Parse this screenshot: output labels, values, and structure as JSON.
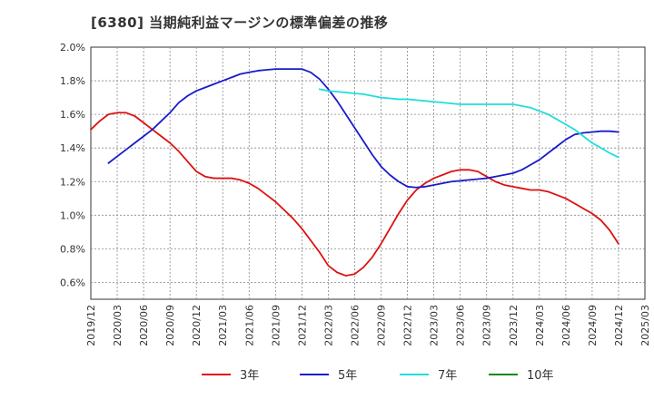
{
  "chart_data": {
    "type": "line",
    "title": "[6380]  当期純利益マージンの標準偏差の推移",
    "xlabel": "",
    "ylabel": "",
    "xlim": [
      "2019-12",
      "2025-03"
    ],
    "ylim": [
      0.5,
      2.0
    ],
    "y_ticks": [
      0.6,
      0.8,
      1.0,
      1.2,
      1.4,
      1.6,
      1.8,
      2.0
    ],
    "y_tick_labels": [
      "0.6%",
      "0.8%",
      "1.0%",
      "1.2%",
      "1.4%",
      "1.6%",
      "1.8%",
      "2.0%"
    ],
    "x_tick_labels": [
      "2019/12",
      "2020/03",
      "2020/06",
      "2020/09",
      "2020/12",
      "2021/03",
      "2021/06",
      "2021/09",
      "2021/12",
      "2022/03",
      "2022/06",
      "2022/09",
      "2022/12",
      "2023/03",
      "2023/06",
      "2023/09",
      "2023/12",
      "2024/03",
      "2024/06",
      "2024/09",
      "2024/12",
      "2025/03"
    ],
    "grid": true,
    "legend_position": "bottom",
    "colors": {
      "3y": "#dd1111",
      "5y": "#1a1acc",
      "7y": "#22dddd",
      "10y": "#118811"
    },
    "series": [
      {
        "name": "3年",
        "color": "#dd1111",
        "points": [
          [
            "2019-12",
            1.51
          ],
          [
            "2020-01",
            1.56
          ],
          [
            "2020-02",
            1.6
          ],
          [
            "2020-03",
            1.61
          ],
          [
            "2020-04",
            1.61
          ],
          [
            "2020-05",
            1.59
          ],
          [
            "2020-06",
            1.55
          ],
          [
            "2020-07",
            1.51
          ],
          [
            "2020-08",
            1.47
          ],
          [
            "2020-09",
            1.43
          ],
          [
            "2020-10",
            1.38
          ],
          [
            "2020-11",
            1.32
          ],
          [
            "2020-12",
            1.26
          ],
          [
            "2021-01",
            1.23
          ],
          [
            "2021-02",
            1.22
          ],
          [
            "2021-03",
            1.22
          ],
          [
            "2021-04",
            1.22
          ],
          [
            "2021-05",
            1.21
          ],
          [
            "2021-06",
            1.19
          ],
          [
            "2021-07",
            1.16
          ],
          [
            "2021-08",
            1.12
          ],
          [
            "2021-09",
            1.08
          ],
          [
            "2021-10",
            1.03
          ],
          [
            "2021-11",
            0.98
          ],
          [
            "2021-12",
            0.92
          ],
          [
            "2022-01",
            0.85
          ],
          [
            "2022-02",
            0.78
          ],
          [
            "2022-03",
            0.7
          ],
          [
            "2022-04",
            0.66
          ],
          [
            "2022-05",
            0.64
          ],
          [
            "2022-06",
            0.65
          ],
          [
            "2022-07",
            0.69
          ],
          [
            "2022-08",
            0.75
          ],
          [
            "2022-09",
            0.83
          ],
          [
            "2022-10",
            0.92
          ],
          [
            "2022-11",
            1.01
          ],
          [
            "2022-12",
            1.09
          ],
          [
            "2023-01",
            1.15
          ],
          [
            "2023-02",
            1.19
          ],
          [
            "2023-03",
            1.22
          ],
          [
            "2023-04",
            1.24
          ],
          [
            "2023-05",
            1.26
          ],
          [
            "2023-06",
            1.27
          ],
          [
            "2023-07",
            1.27
          ],
          [
            "2023-08",
            1.26
          ],
          [
            "2023-09",
            1.23
          ],
          [
            "2023-10",
            1.2
          ],
          [
            "2023-11",
            1.18
          ],
          [
            "2023-12",
            1.17
          ],
          [
            "2024-01",
            1.16
          ],
          [
            "2024-02",
            1.15
          ],
          [
            "2024-03",
            1.15
          ],
          [
            "2024-04",
            1.14
          ],
          [
            "2024-05",
            1.12
          ],
          [
            "2024-06",
            1.1
          ],
          [
            "2024-07",
            1.07
          ],
          [
            "2024-08",
            1.04
          ],
          [
            "2024-09",
            1.01
          ],
          [
            "2024-10",
            0.97
          ],
          [
            "2024-11",
            0.91
          ],
          [
            "2024-12",
            0.83
          ]
        ]
      },
      {
        "name": "5年",
        "color": "#1a1acc",
        "points": [
          [
            "2020-02",
            1.31
          ],
          [
            "2020-03",
            1.35
          ],
          [
            "2020-04",
            1.39
          ],
          [
            "2020-05",
            1.43
          ],
          [
            "2020-06",
            1.47
          ],
          [
            "2020-07",
            1.51
          ],
          [
            "2020-08",
            1.56
          ],
          [
            "2020-09",
            1.61
          ],
          [
            "2020-10",
            1.67
          ],
          [
            "2020-11",
            1.71
          ],
          [
            "2020-12",
            1.74
          ],
          [
            "2021-01",
            1.76
          ],
          [
            "2021-02",
            1.78
          ],
          [
            "2021-03",
            1.8
          ],
          [
            "2021-04",
            1.82
          ],
          [
            "2021-05",
            1.84
          ],
          [
            "2021-06",
            1.85
          ],
          [
            "2021-07",
            1.86
          ],
          [
            "2021-08",
            1.865
          ],
          [
            "2021-09",
            1.87
          ],
          [
            "2021-10",
            1.87
          ],
          [
            "2021-11",
            1.87
          ],
          [
            "2021-12",
            1.87
          ],
          [
            "2022-01",
            1.85
          ],
          [
            "2022-02",
            1.81
          ],
          [
            "2022-03",
            1.75
          ],
          [
            "2022-04",
            1.68
          ],
          [
            "2022-05",
            1.6
          ],
          [
            "2022-06",
            1.52
          ],
          [
            "2022-07",
            1.44
          ],
          [
            "2022-08",
            1.36
          ],
          [
            "2022-09",
            1.29
          ],
          [
            "2022-10",
            1.24
          ],
          [
            "2022-11",
            1.2
          ],
          [
            "2022-12",
            1.17
          ],
          [
            "2023-01",
            1.165
          ],
          [
            "2023-02",
            1.17
          ],
          [
            "2023-03",
            1.18
          ],
          [
            "2023-04",
            1.19
          ],
          [
            "2023-05",
            1.2
          ],
          [
            "2023-06",
            1.205
          ],
          [
            "2023-07",
            1.21
          ],
          [
            "2023-08",
            1.215
          ],
          [
            "2023-09",
            1.22
          ],
          [
            "2023-10",
            1.23
          ],
          [
            "2023-11",
            1.24
          ],
          [
            "2023-12",
            1.25
          ],
          [
            "2024-01",
            1.27
          ],
          [
            "2024-02",
            1.3
          ],
          [
            "2024-03",
            1.33
          ],
          [
            "2024-04",
            1.37
          ],
          [
            "2024-05",
            1.41
          ],
          [
            "2024-06",
            1.45
          ],
          [
            "2024-07",
            1.48
          ],
          [
            "2024-08",
            1.49
          ],
          [
            "2024-09",
            1.495
          ],
          [
            "2024-10",
            1.5
          ],
          [
            "2024-11",
            1.5
          ],
          [
            "2024-12",
            1.495
          ]
        ]
      },
      {
        "name": "7年",
        "color": "#22dddd",
        "points": [
          [
            "2022-02",
            1.75
          ],
          [
            "2022-03",
            1.74
          ],
          [
            "2022-04",
            1.735
          ],
          [
            "2022-05",
            1.73
          ],
          [
            "2022-06",
            1.725
          ],
          [
            "2022-07",
            1.72
          ],
          [
            "2022-08",
            1.71
          ],
          [
            "2022-09",
            1.7
          ],
          [
            "2022-10",
            1.695
          ],
          [
            "2022-11",
            1.69
          ],
          [
            "2022-12",
            1.69
          ],
          [
            "2023-01",
            1.685
          ],
          [
            "2023-02",
            1.68
          ],
          [
            "2023-03",
            1.675
          ],
          [
            "2023-04",
            1.67
          ],
          [
            "2023-05",
            1.665
          ],
          [
            "2023-06",
            1.66
          ],
          [
            "2023-07",
            1.66
          ],
          [
            "2023-08",
            1.66
          ],
          [
            "2023-09",
            1.66
          ],
          [
            "2023-10",
            1.66
          ],
          [
            "2023-11",
            1.66
          ],
          [
            "2023-12",
            1.66
          ],
          [
            "2024-01",
            1.65
          ],
          [
            "2024-02",
            1.64
          ],
          [
            "2024-03",
            1.62
          ],
          [
            "2024-04",
            1.6
          ],
          [
            "2024-05",
            1.57
          ],
          [
            "2024-06",
            1.54
          ],
          [
            "2024-07",
            1.51
          ],
          [
            "2024-08",
            1.47
          ],
          [
            "2024-09",
            1.43
          ],
          [
            "2024-10",
            1.4
          ],
          [
            "2024-11",
            1.37
          ],
          [
            "2024-12",
            1.345
          ]
        ]
      },
      {
        "name": "10年",
        "color": "#118811",
        "points": []
      }
    ]
  }
}
